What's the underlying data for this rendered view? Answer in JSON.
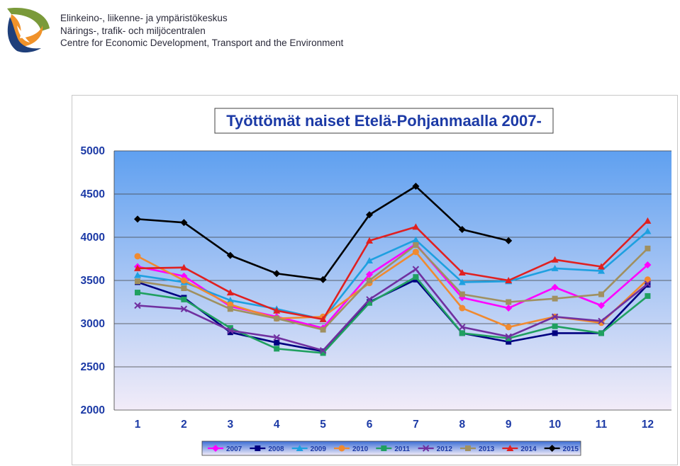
{
  "header": {
    "org_lines": [
      "Elinkeino-, liikenne- ja ympäristökeskus",
      "Närings-, trafik- och miljöcentralen",
      "Centre for Economic Development, Transport and the Environment"
    ],
    "logo_icon": "ely-centre-logo-icon"
  },
  "chart_data": {
    "type": "line",
    "title": "Työttömät naiset Etelä-Pohjanmaalla 2007-",
    "xlabel": "",
    "ylabel": "",
    "categories": [
      "1",
      "2",
      "3",
      "4",
      "5",
      "6",
      "7",
      "8",
      "9",
      "10",
      "11",
      "12"
    ],
    "ylim": [
      2000,
      5000
    ],
    "yticks": [
      "2000",
      "2500",
      "3000",
      "3500",
      "4000",
      "4500",
      "5000"
    ],
    "grid": true,
    "legend_position": "bottom",
    "series": [
      {
        "name": "2007",
        "color": "#ff00ff",
        "marker": "diamond",
        "values": [
          3660,
          3550,
          3200,
          3080,
          2950,
          3570,
          3920,
          3300,
          3180,
          3420,
          3210,
          3680
        ]
      },
      {
        "name": "2008",
        "color": "#000080",
        "marker": "square",
        "values": [
          3480,
          3300,
          2900,
          2780,
          2680,
          3250,
          3510,
          2890,
          2790,
          2890,
          2890,
          3450
        ]
      },
      {
        "name": "2009",
        "color": "#1ea0e0",
        "marker": "triangle",
        "values": [
          3560,
          3480,
          3270,
          3170,
          3050,
          3730,
          3970,
          3480,
          3490,
          3640,
          3610,
          4070
        ]
      },
      {
        "name": "2010",
        "color": "#f08a30",
        "marker": "circle",
        "values": [
          3780,
          3500,
          3220,
          3060,
          3080,
          3470,
          3830,
          3180,
          2960,
          3080,
          3010,
          3510
        ]
      },
      {
        "name": "2011",
        "color": "#20a060",
        "marker": "square",
        "values": [
          3360,
          3280,
          2950,
          2710,
          2660,
          3240,
          3540,
          2890,
          2830,
          2970,
          2890,
          3320
        ]
      },
      {
        "name": "2012",
        "color": "#7030a0",
        "marker": "x",
        "values": [
          3210,
          3170,
          2920,
          2840,
          2690,
          3280,
          3630,
          2960,
          2850,
          3080,
          3030,
          3460
        ]
      },
      {
        "name": "2013",
        "color": "#a09060",
        "marker": "square",
        "values": [
          3490,
          3410,
          3170,
          3060,
          2930,
          3500,
          3910,
          3340,
          3250,
          3290,
          3340,
          3870
        ]
      },
      {
        "name": "2014",
        "color": "#e02020",
        "marker": "triangle",
        "values": [
          3640,
          3650,
          3360,
          3150,
          3050,
          3960,
          4120,
          3590,
          3500,
          3740,
          3660,
          4190
        ]
      },
      {
        "name": "2015",
        "color": "#000000",
        "marker": "diamond",
        "values": [
          4210,
          4170,
          3790,
          3580,
          3510,
          4260,
          4590,
          4090,
          3960,
          null,
          null,
          null
        ]
      }
    ],
    "colors": {
      "plot_top": "#5fa0f0",
      "plot_bottom": "#f2ecf8",
      "axis_text": "#1c3aa6",
      "title_text": "#1c3aa6",
      "legend_top": "#3d6fd6",
      "legend_bottom": "#f2ecf8"
    }
  }
}
